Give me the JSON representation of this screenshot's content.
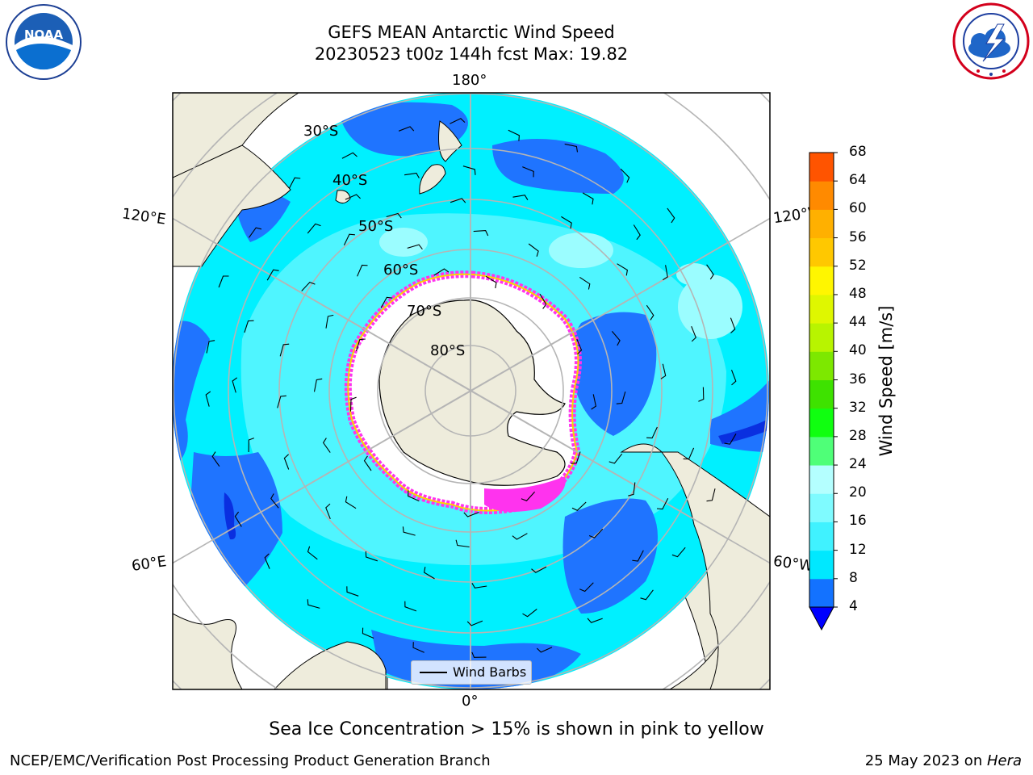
{
  "header": {
    "title": "GEFS MEAN Antarctic Wind Speed",
    "subtitle": "20230523 t00z 144h fcst   Max: 19.82"
  },
  "logos": {
    "left": {
      "icon": "noaa-logo",
      "text": "NOAA",
      "ring_text": "NATIONAL OCEANIC AND ATMOSPHERIC ADMINISTRATION · U.S. DEPARTMENT OF COMMERCE"
    },
    "right": {
      "icon": "nws-logo",
      "ring_text": "NATIONAL WEATHER SERVICE"
    }
  },
  "map": {
    "projection": "south-polar-stereographic",
    "lat_labels": [
      "30°S",
      "40°S",
      "50°S",
      "60°S",
      "70°S",
      "80°S"
    ],
    "lon_labels": {
      "top": "180°",
      "bottom": "0°",
      "left_upper": "120°E",
      "left_lower": "60°E",
      "right_upper": "120°W",
      "right_lower": "60°W"
    },
    "colors": {
      "land": "#eeecdc",
      "ocean_4_8": "#1f74ff",
      "ocean_8_12": "#00f0ff",
      "ocean_12_16": "#4ff5ff",
      "ocean_16_20": "#9bfdff",
      "sea_ice_low": "#ff33ee",
      "sea_ice_high": "#ffd200",
      "grid": "#b5b5b5",
      "coast": "#000000"
    },
    "legend_label": "Wind Barbs"
  },
  "colorbar": {
    "title": "Wind Speed [m/s]",
    "ticks": [
      "4",
      "8",
      "12",
      "16",
      "20",
      "24",
      "28",
      "32",
      "36",
      "40",
      "44",
      "48",
      "52",
      "56",
      "60",
      "64",
      "68"
    ],
    "colors": [
      "#1372ff",
      "#00e8ff",
      "#40f2ff",
      "#7ffbff",
      "#b4ffff",
      "#4fff78",
      "#10ff10",
      "#3ee200",
      "#7de800",
      "#b8f400",
      "#dff700",
      "#fff600",
      "#ffc800",
      "#ffb000",
      "#ff8a00",
      "#ff5400",
      "#ff1800",
      "#ff0000"
    ]
  },
  "caption": "Sea Ice Concentration > 15% is shown in pink to yellow",
  "footer": {
    "credit": "NCEP/EMC/Verification Post Processing Product Generation Branch",
    "date_prefix": "25 May 2023 on ",
    "machine": "Hera"
  }
}
